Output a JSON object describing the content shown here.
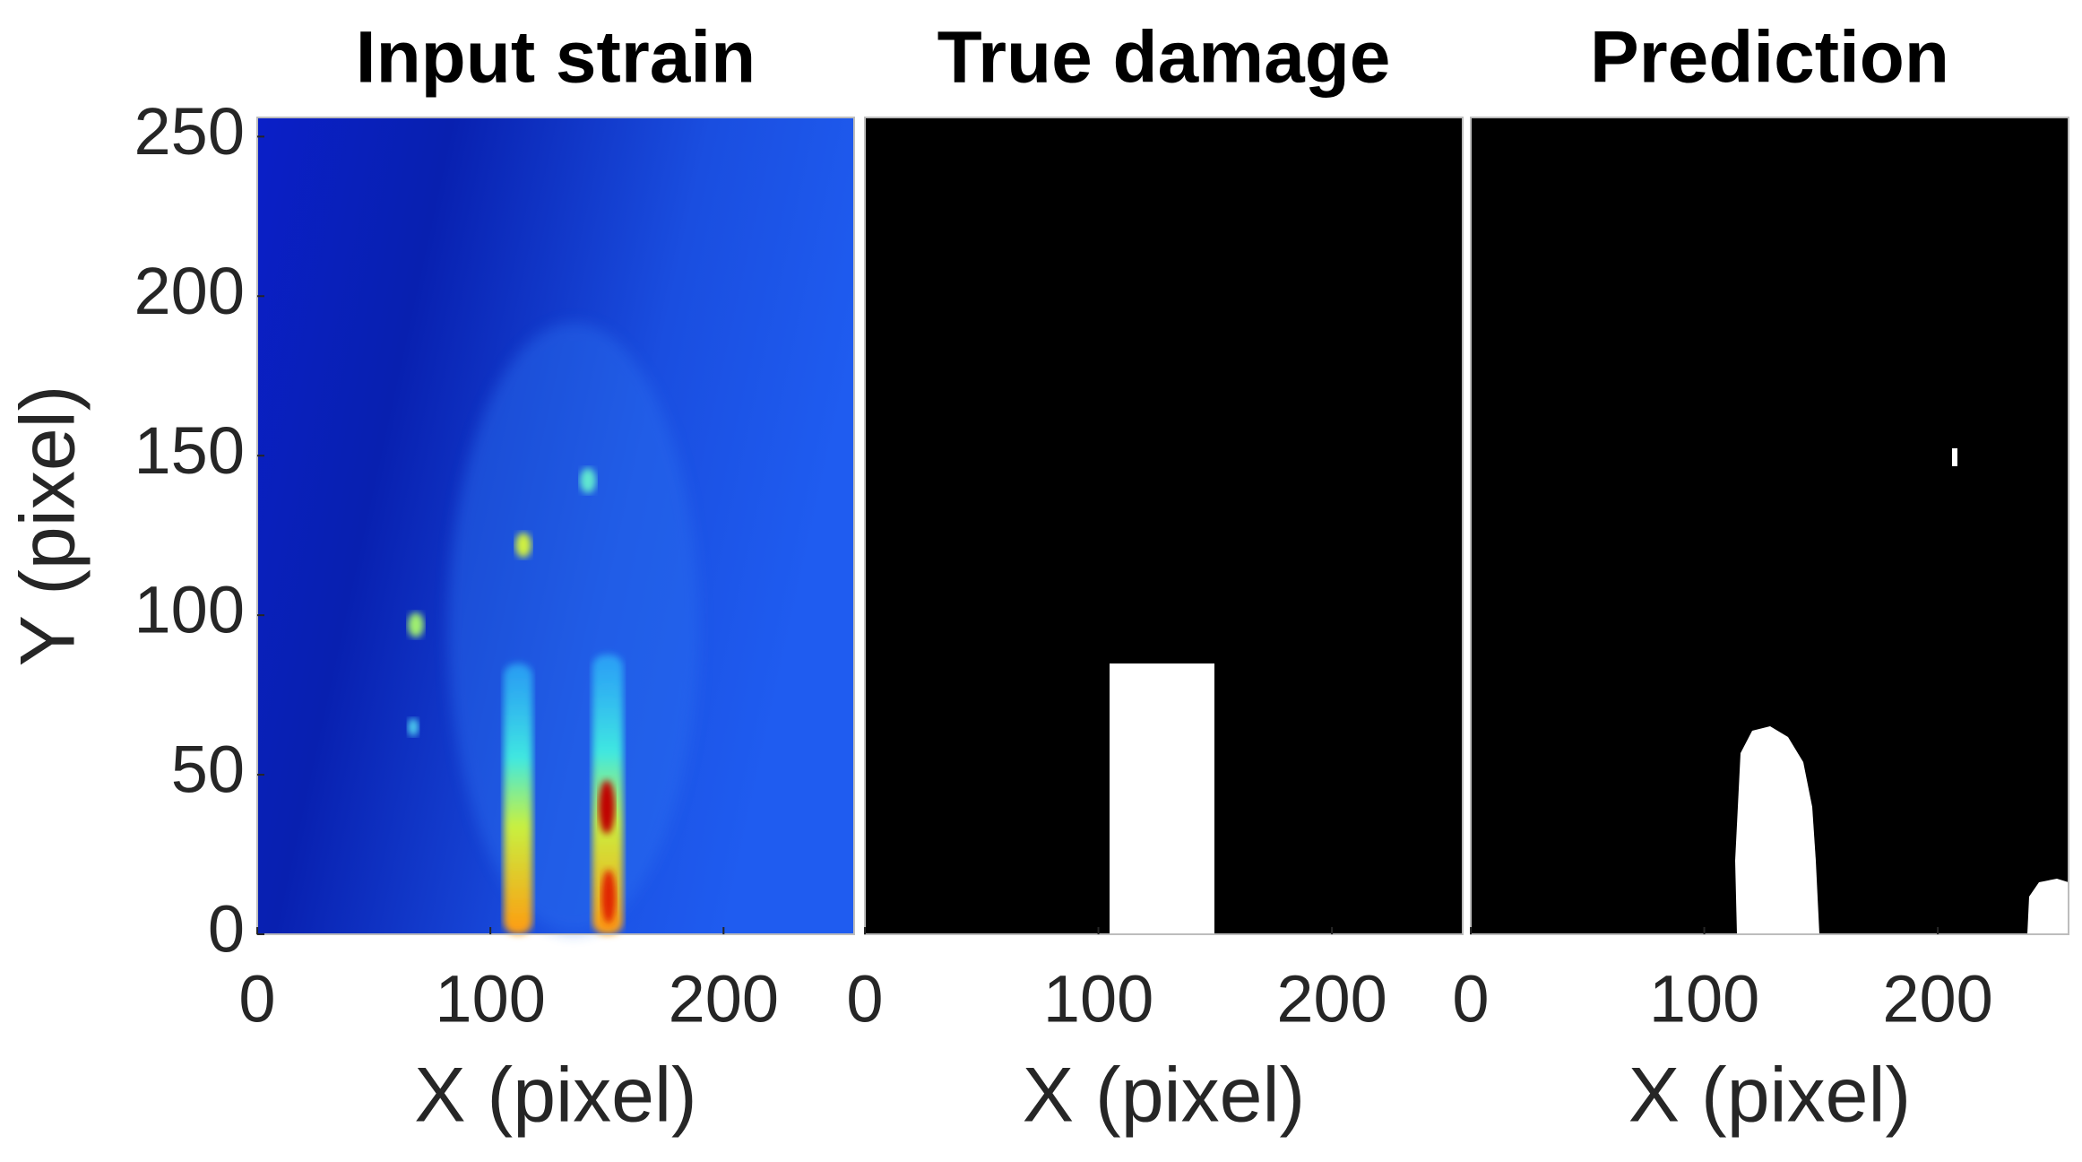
{
  "chart_data": [
    {
      "type": "image",
      "title": "Input strain",
      "xlabel": "X (pixel)",
      "ylabel": "Y (pixel)",
      "xlim": [
        0,
        256
      ],
      "ylim": [
        0,
        256
      ],
      "xticks": [
        0,
        100,
        200
      ],
      "yticks": [
        0,
        50,
        100,
        150,
        200,
        250
      ]
    },
    {
      "type": "image",
      "title": "True damage",
      "xlabel": "X (pixel)",
      "xlim": [
        0,
        256
      ],
      "ylim": [
        0,
        256
      ],
      "xticks": [
        0,
        100,
        200
      ]
    },
    {
      "type": "image",
      "title": "Prediction",
      "xlabel": "X (pixel)",
      "xlim": [
        0,
        256
      ],
      "ylim": [
        0,
        256
      ],
      "xticks": [
        0,
        100,
        200
      ]
    }
  ]
}
